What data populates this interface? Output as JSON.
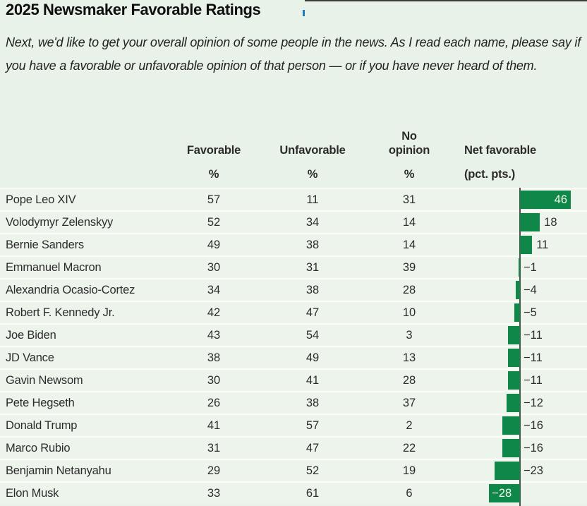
{
  "page": {
    "title": "2025 Newsmaker Favorable Ratings",
    "subtitle": "Next, we'd like to get your overall opinion of some people in the news. As I read each name, please say if you have a favorable or unfavorable opinion of that person — or if you have never heard of them."
  },
  "colors": {
    "background": "#e9f2e8",
    "row_background": "#edf4ec",
    "bar_green": "#0e8748",
    "baseline": "#4f4f4f",
    "text": "#2c2c2c"
  },
  "table": {
    "columns": [
      {
        "label": "Favorable",
        "sub": "%"
      },
      {
        "label": "Unfavorable",
        "sub": "%"
      },
      {
        "label": "No opinion",
        "sub": "%"
      },
      {
        "label": "Net favorable",
        "sub": "(pct. pts.)"
      }
    ],
    "rows": [
      {
        "name": "Pope Leo XIV",
        "favorable": 57,
        "unfavorable": 11,
        "no_opinion": 31,
        "net": 46,
        "net_label": "46",
        "label_inside": true
      },
      {
        "name": "Volodymyr Zelenskyy",
        "favorable": 52,
        "unfavorable": 34,
        "no_opinion": 14,
        "net": 18,
        "net_label": "18",
        "label_inside": false
      },
      {
        "name": "Bernie Sanders",
        "favorable": 49,
        "unfavorable": 38,
        "no_opinion": 14,
        "net": 11,
        "net_label": "11",
        "label_inside": false
      },
      {
        "name": "Emmanuel Macron",
        "favorable": 30,
        "unfavorable": 31,
        "no_opinion": 39,
        "net": -1,
        "net_label": "−1",
        "label_inside": false
      },
      {
        "name": "Alexandria Ocasio-Cortez",
        "favorable": 34,
        "unfavorable": 38,
        "no_opinion": 28,
        "net": -4,
        "net_label": "−4",
        "label_inside": false
      },
      {
        "name": "Robert F. Kennedy Jr.",
        "favorable": 42,
        "unfavorable": 47,
        "no_opinion": 10,
        "net": -5,
        "net_label": "−5",
        "label_inside": false
      },
      {
        "name": "Joe Biden",
        "favorable": 43,
        "unfavorable": 54,
        "no_opinion": 3,
        "net": -11,
        "net_label": "−11",
        "label_inside": false
      },
      {
        "name": "JD Vance",
        "favorable": 38,
        "unfavorable": 49,
        "no_opinion": 13,
        "net": -11,
        "net_label": "−11",
        "label_inside": false
      },
      {
        "name": "Gavin Newsom",
        "favorable": 30,
        "unfavorable": 41,
        "no_opinion": 28,
        "net": -11,
        "net_label": "−11",
        "label_inside": false
      },
      {
        "name": "Pete Hegseth",
        "favorable": 26,
        "unfavorable": 38,
        "no_opinion": 37,
        "net": -12,
        "net_label": "−12",
        "label_inside": false
      },
      {
        "name": "Donald Trump",
        "favorable": 41,
        "unfavorable": 57,
        "no_opinion": 2,
        "net": -16,
        "net_label": "−16",
        "label_inside": false
      },
      {
        "name": "Marco Rubio",
        "favorable": 31,
        "unfavorable": 47,
        "no_opinion": 22,
        "net": -16,
        "net_label": "−16",
        "label_inside": false
      },
      {
        "name": "Benjamin Netanyahu",
        "favorable": 29,
        "unfavorable": 52,
        "no_opinion": 19,
        "net": -23,
        "net_label": "−23",
        "label_inside": false
      },
      {
        "name": "Elon Musk",
        "favorable": 33,
        "unfavorable": 61,
        "no_opinion": 6,
        "net": -28,
        "net_label": "−28",
        "label_inside": true
      }
    ]
  },
  "chart_data": {
    "type": "table",
    "title": "2025 Newsmaker Favorable Ratings",
    "subtitle": "Next, we'd like to get your overall opinion of some people in the news. As I read each name, please say if you have a favorable or unfavorable opinion of that person — or if you have never heard of them.",
    "categories": [
      "Pope Leo XIV",
      "Volodymyr Zelenskyy",
      "Bernie Sanders",
      "Emmanuel Macron",
      "Alexandria Ocasio-Cortez",
      "Robert F. Kennedy Jr.",
      "Joe Biden",
      "JD Vance",
      "Gavin Newsom",
      "Pete Hegseth",
      "Donald Trump",
      "Marco Rubio",
      "Benjamin Netanyahu",
      "Elon Musk"
    ],
    "series": [
      {
        "name": "Favorable %",
        "values": [
          57,
          52,
          49,
          30,
          34,
          42,
          43,
          38,
          30,
          26,
          41,
          31,
          29,
          33
        ]
      },
      {
        "name": "Unfavorable %",
        "values": [
          11,
          34,
          38,
          31,
          38,
          47,
          54,
          49,
          41,
          38,
          57,
          47,
          52,
          61
        ]
      },
      {
        "name": "No opinion %",
        "values": [
          31,
          14,
          14,
          39,
          28,
          10,
          3,
          13,
          28,
          37,
          2,
          22,
          19,
          6
        ]
      },
      {
        "name": "Net favorable (pct. pts.)",
        "values": [
          46,
          18,
          11,
          -1,
          -4,
          -5,
          -11,
          -11,
          -11,
          -12,
          -16,
          -16,
          -23,
          -28
        ]
      }
    ],
    "net_bar_chart": {
      "type": "bar",
      "orientation": "horizontal",
      "xlim": [
        -28,
        46
      ],
      "bar_color": "#0e8748",
      "legend": "none",
      "grid": "off"
    }
  }
}
